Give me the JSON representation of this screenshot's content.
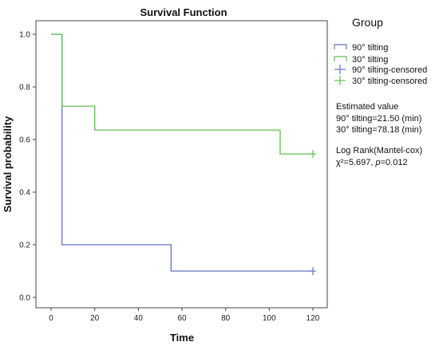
{
  "chart_data": {
    "type": "line",
    "subtype": "kaplan-meier-step",
    "title": "Survival Function",
    "xlabel": "Time",
    "ylabel": "Survival probability",
    "xlim": [
      0,
      120
    ],
    "ylim": [
      0,
      1.0
    ],
    "x_ticks": [
      0,
      20,
      40,
      60,
      80,
      100,
      120
    ],
    "y_ticks": [
      0.0,
      0.2,
      0.4,
      0.6,
      0.8,
      1.0
    ],
    "x_tick_labels": [
      "0",
      "20",
      "40",
      "60",
      "80",
      "100",
      "120"
    ],
    "y_tick_labels": [
      "0.0",
      "0.2",
      "0.4",
      "0.6",
      "0.8",
      "1.0"
    ],
    "grid": false,
    "legend_title": "Group",
    "legend_placement": "right",
    "series": [
      {
        "name": "90° tilting",
        "color": "#6275c2",
        "steps": [
          [
            0,
            1.0
          ],
          [
            5,
            0.2
          ],
          [
            55,
            0.1
          ],
          [
            120,
            0.1
          ]
        ],
        "censored": [
          [
            120,
            0.1
          ]
        ],
        "censored_name": "90° tilting-censored"
      },
      {
        "name": "30° tilting",
        "color": "#62bf55",
        "steps": [
          [
            0,
            1.0
          ],
          [
            5,
            0.727
          ],
          [
            20,
            0.636
          ],
          [
            105,
            0.545
          ],
          [
            120,
            0.545
          ]
        ],
        "censored": [
          [
            120,
            0.545
          ]
        ],
        "censored_name": "30° tilting-censored"
      }
    ],
    "annotations": {
      "estimated_header": "Estimated value",
      "estimated_90": "90° tilting=21.50 (min)",
      "estimated_30": "30° tilting=78.18 (min)",
      "logrank_header": "Log Rank(Mantel-cox)",
      "logrank_stat_prefix": "χ²=5.697, ",
      "logrank_p_symbol": "p",
      "logrank_p_value": "=0.012"
    }
  }
}
